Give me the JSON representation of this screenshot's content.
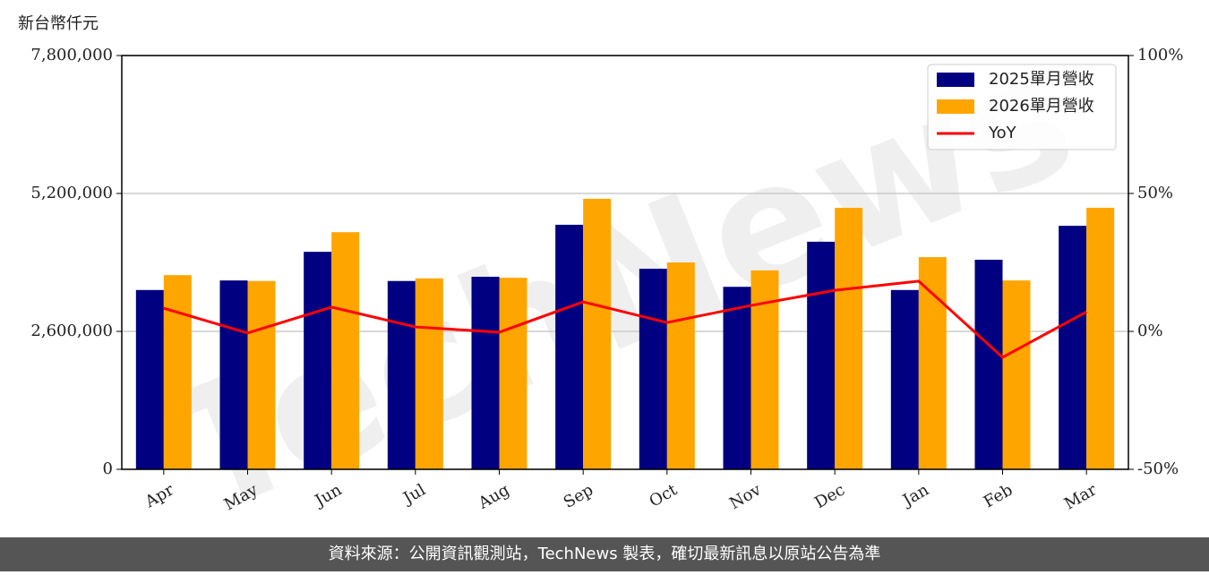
{
  "chart_data": {
    "type": "bar_line",
    "y_label": "新台幣仟元",
    "watermark": "TechNews",
    "footer": "資料來源：公開資訊觀測站，TechNews 製表，確切最新訊息以原站公告為準",
    "categories": [
      "Apr",
      "May",
      "Jun",
      "Jul",
      "Aug",
      "Sep",
      "Oct",
      "Nov",
      "Dec",
      "Jan",
      "Feb",
      "Mar"
    ],
    "series": [
      {
        "name": "2025單月營收",
        "color": "#000080",
        "values": [
          3380000,
          3560000,
          4100000,
          3550000,
          3630000,
          4610000,
          3780000,
          3440000,
          4290000,
          3380000,
          3950000,
          4590000
        ]
      },
      {
        "name": "2026單月營收",
        "color": "#ffa500",
        "values": [
          3660000,
          3550000,
          4470000,
          3600000,
          3610000,
          5100000,
          3900000,
          3750000,
          4930000,
          4000000,
          3560000,
          4930000
        ]
      },
      {
        "name": "YoY",
        "color": "#ff0000",
        "axis": "y2",
        "values": [
          8.4,
          -0.6,
          8.8,
          1.6,
          -0.3,
          10.7,
          3.2,
          9.4,
          14.9,
          18.2,
          -9.4,
          7.1
        ]
      }
    ],
    "ylim": [
      0,
      7800000
    ],
    "yticks": [
      0,
      {
        "value": 2600000,
        "label": "2,600,000"
      },
      {
        "value": 5200000,
        "label": "5,200,000"
      },
      {
        "value": 7800000,
        "label": "7,800,000"
      }
    ],
    "y2lim": [
      -50,
      100
    ],
    "y2ticks": [
      {
        "value": -50,
        "label": "-50%"
      },
      {
        "value": 0,
        "label": "0%"
      },
      {
        "value": 50,
        "label": "50%"
      },
      {
        "value": 100,
        "label": "100%"
      }
    ],
    "grid": true,
    "legend": "upper right"
  }
}
